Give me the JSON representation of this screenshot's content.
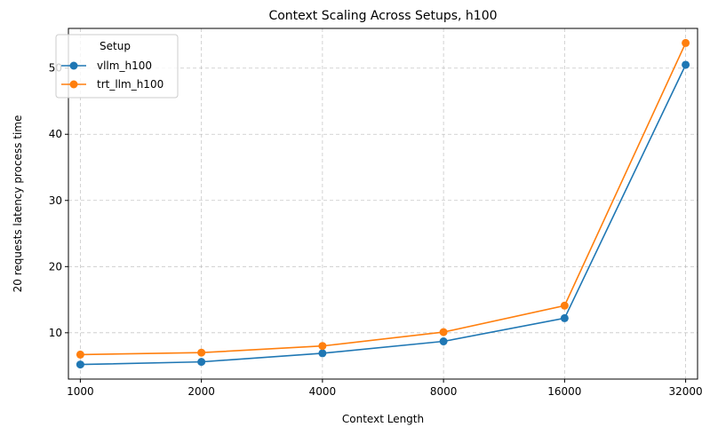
{
  "chart_data": {
    "type": "line",
    "title": "Context Scaling Across Setups, h100",
    "xlabel": "Context Length",
    "ylabel": "20 requests latency process time",
    "x": [
      1000,
      2000,
      4000,
      8000,
      16000,
      32000
    ],
    "x_tick_labels": [
      "1000",
      "2000",
      "4000",
      "8000",
      "16000",
      "32000"
    ],
    "y_ticks": [
      10,
      20,
      30,
      40,
      50
    ],
    "ylim": [
      3.0,
      56.0
    ],
    "grid": true,
    "legend": {
      "title": "Setup",
      "placement": "top-left"
    },
    "series": [
      {
        "name": "vllm_h100",
        "color": "#1f77b4",
        "values": [
          5.2,
          5.6,
          6.9,
          8.7,
          12.2,
          50.5
        ]
      },
      {
        "name": "trt_llm_h100",
        "color": "#ff7f0e",
        "values": [
          6.7,
          7.0,
          8.0,
          10.1,
          14.1,
          53.8
        ]
      }
    ]
  }
}
